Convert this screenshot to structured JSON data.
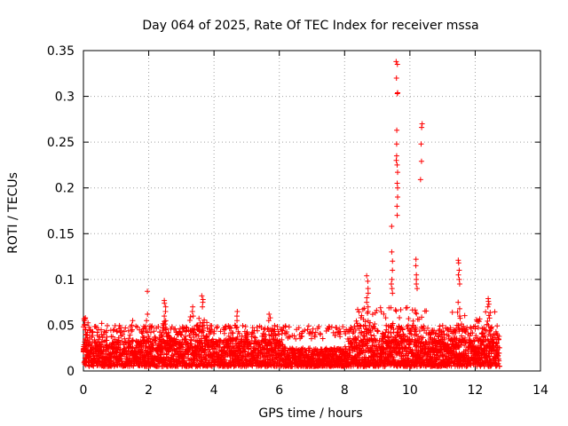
{
  "chart_data": {
    "type": "scatter",
    "title": "Day 064 of 2025, Rate Of TEC Index for receiver mssa",
    "xlabel": "GPS time / hours",
    "ylabel": "ROTI / TECUs",
    "xlim": [
      0,
      14
    ],
    "ylim": [
      0,
      0.35
    ],
    "x_ticks": [
      0,
      2,
      4,
      6,
      8,
      10,
      12,
      14
    ],
    "y_ticks": [
      0,
      0.05,
      0.1,
      0.15,
      0.2,
      0.25,
      0.3,
      0.35
    ],
    "x_tick_labels": [
      "0",
      "2",
      "4",
      "6",
      "8",
      "10",
      "12",
      "14"
    ],
    "y_tick_labels": [
      "0",
      "0.05",
      "0.1",
      "0.15",
      "0.2",
      "0.25",
      "0.3",
      "0.35"
    ],
    "grid": true,
    "marker": "+",
    "marker_color": "#ff0000",
    "series": [
      {
        "name": "ROTI",
        "note": "dense background band 0.005-0.04 TECU from 0 to 12.8 h plus notable excursions listed",
        "background_band": {
          "x_range": [
            0,
            12.75
          ],
          "y_min": 0.005,
          "y_max": 0.035
        },
        "peaks": [
          {
            "x": 0.05,
            "values": [
              0.057,
              0.055,
              0.05,
              0.045,
              0.04,
              0.035
            ]
          },
          {
            "x": 0.55,
            "values": [
              0.052,
              0.045,
              0.04
            ]
          },
          {
            "x": 1.5,
            "values": [
              0.055,
              0.05,
              0.045
            ]
          },
          {
            "x": 1.95,
            "values": [
              0.087,
              0.062,
              0.055
            ]
          },
          {
            "x": 2.5,
            "values": [
              0.077,
              0.074,
              0.07,
              0.065,
              0.06
            ]
          },
          {
            "x": 3.35,
            "values": [
              0.07,
              0.065,
              0.06
            ]
          },
          {
            "x": 3.65,
            "values": [
              0.082,
              0.078,
              0.075,
              0.07
            ]
          },
          {
            "x": 4.7,
            "values": [
              0.065,
              0.06,
              0.055
            ]
          },
          {
            "x": 5.7,
            "values": [
              0.062,
              0.058,
              0.055
            ]
          },
          {
            "x": 8.7,
            "values": [
              0.104,
              0.098,
              0.09,
              0.085,
              0.08,
              0.075,
              0.07,
              0.065
            ]
          },
          {
            "x": 9.45,
            "values": [
              0.158,
              0.13,
              0.12,
              0.11,
              0.1,
              0.095,
              0.09,
              0.085
            ]
          },
          {
            "x": 9.6,
            "values": [
              0.338,
              0.335,
              0.32,
              0.304,
              0.303,
              0.263,
              0.248,
              0.235,
              0.23,
              0.225,
              0.217,
              0.205,
              0.2,
              0.19,
              0.18,
              0.17
            ]
          },
          {
            "x": 10.2,
            "values": [
              0.122,
              0.115,
              0.105,
              0.1,
              0.095,
              0.09
            ]
          },
          {
            "x": 10.35,
            "values": [
              0.27,
              0.266,
              0.248,
              0.229,
              0.209
            ]
          },
          {
            "x": 11.5,
            "values": [
              0.121,
              0.118,
              0.11,
              0.105,
              0.1,
              0.095
            ]
          },
          {
            "x": 11.5,
            "values": [
              0.075,
              0.068,
              0.06
            ]
          },
          {
            "x": 12.4,
            "values": [
              0.079,
              0.076,
              0.073,
              0.07
            ]
          }
        ]
      }
    ]
  }
}
